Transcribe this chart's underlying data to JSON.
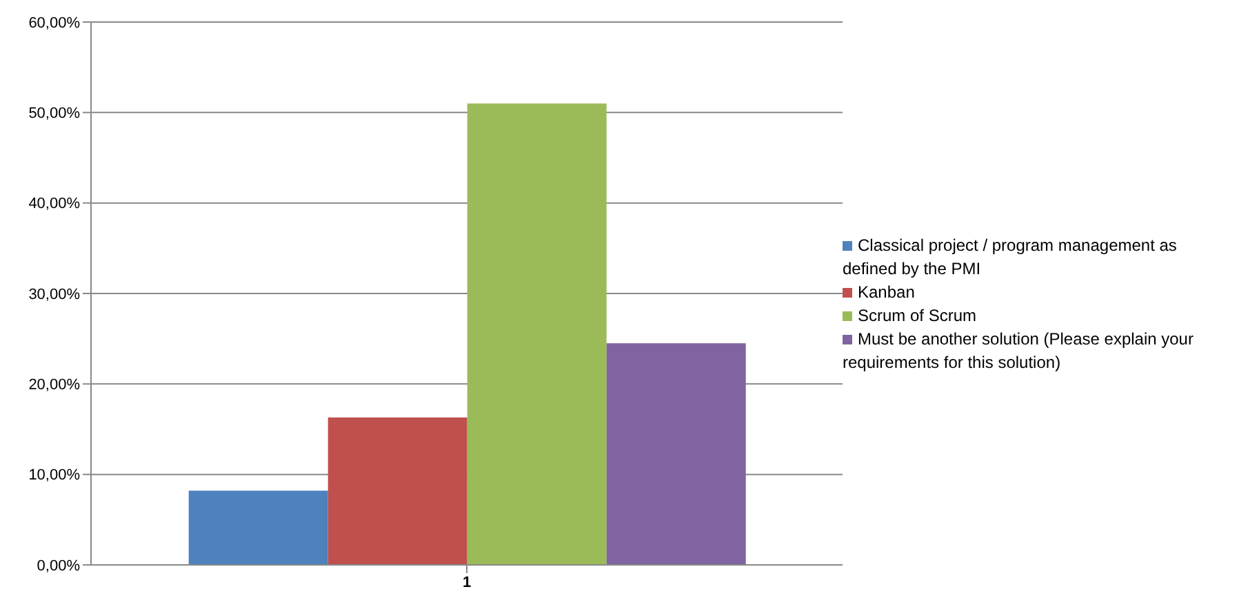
{
  "chart_data": {
    "type": "bar",
    "categories": [
      "1"
    ],
    "series": [
      {
        "name": "Classical project / program management as defined by the PMI",
        "color": "#4f81bd",
        "values": [
          8.2
        ]
      },
      {
        "name": "Kanban",
        "color": "#c0504d",
        "values": [
          16.3
        ]
      },
      {
        "name": "Scrum of Scrum",
        "color": "#9bbb59",
        "values": [
          51
        ]
      },
      {
        "name": "Must be another solution (Please explain your requirements for this solution)",
        "color": "#8064a2",
        "values": [
          24.5
        ]
      }
    ],
    "ylim": [
      0,
      60
    ],
    "yticks": [
      {
        "value": 0,
        "label": "0,00%"
      },
      {
        "value": 10,
        "label": "10,00%"
      },
      {
        "value": 20,
        "label": "20,00%"
      },
      {
        "value": 30,
        "label": "30,00%"
      },
      {
        "value": 40,
        "label": "40,00%"
      },
      {
        "value": 50,
        "label": "50,00%"
      },
      {
        "value": 60,
        "label": "60,00%"
      }
    ],
    "grid": "y",
    "legend": "right"
  }
}
